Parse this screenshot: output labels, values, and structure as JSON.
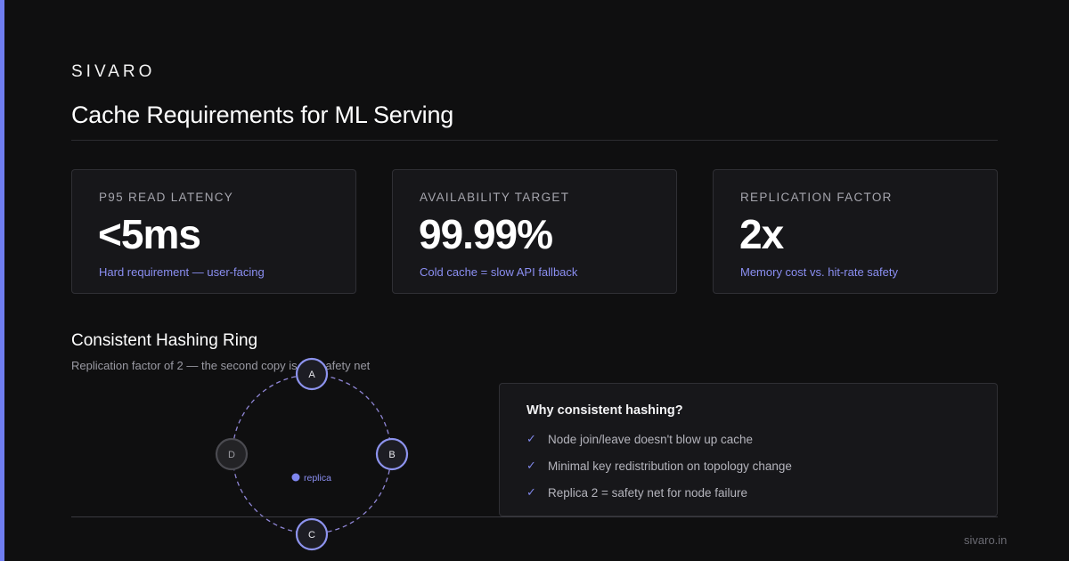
{
  "brand": "SIVARO",
  "title": "Cache Requirements for ML Serving",
  "metrics": [
    {
      "label": "P95 READ LATENCY",
      "value": "<5ms",
      "note": "Hard requirement — user-facing"
    },
    {
      "label": "AVAILABILITY TARGET",
      "value": "99.99%",
      "note": "Cold cache = slow API fallback"
    },
    {
      "label": "REPLICATION FACTOR",
      "value": "2x",
      "note": "Memory cost vs. hit-rate safety"
    }
  ],
  "ring_section": {
    "title": "Consistent Hashing Ring",
    "subtitle": "Replication factor of 2 — the second copy is the safety net",
    "nodes": [
      {
        "label": "A",
        "status": "active"
      },
      {
        "label": "B",
        "status": "active"
      },
      {
        "label": "C",
        "status": "active"
      },
      {
        "label": "D",
        "status": "inactive"
      }
    ],
    "replica_label": "replica"
  },
  "why_panel": {
    "title": "Why consistent hashing?",
    "items": [
      "Node join/leave doesn't blow up cache",
      "Minimal key redistribution on topology change",
      "Replica 2 = safety net for node failure"
    ]
  },
  "footer": "sivaro.in",
  "colors": {
    "background": "#0f0f10",
    "accent": "#6f7df0",
    "card": "#17171a",
    "note": "#8b8ff2"
  }
}
